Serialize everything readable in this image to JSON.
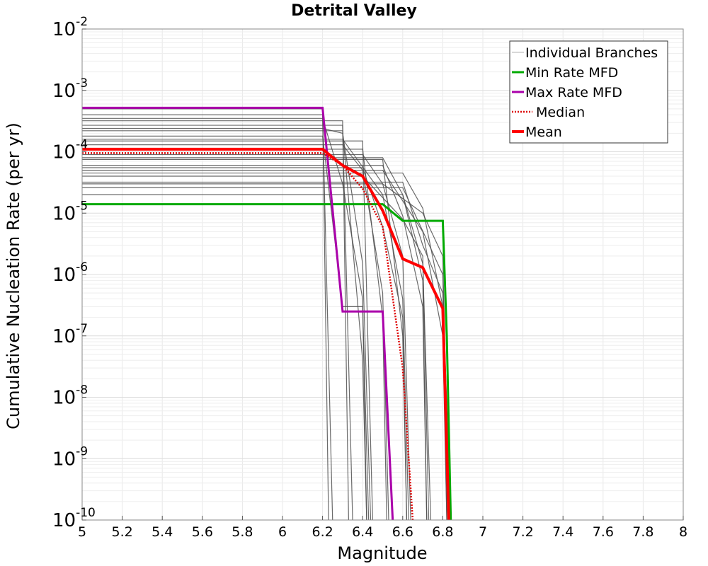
{
  "chart_data": {
    "type": "line",
    "title": "Detrital Valley",
    "xlabel": "Magnitude",
    "ylabel": "Cumulative Nucleation Rate (per yr)",
    "xlim": [
      5,
      8
    ],
    "ylim": [
      1e-10,
      0.01
    ],
    "y_scale": "log",
    "grid": true,
    "x_ticks": [
      "5",
      "5.2",
      "5.4",
      "5.6",
      "5.8",
      "6",
      "6.2",
      "6.4",
      "6.6",
      "6.8",
      "7",
      "7.2",
      "7.4",
      "7.6",
      "7.8",
      "8"
    ],
    "y_ticks": [
      {
        "value": 1e-10,
        "base": "10",
        "exp": "-10"
      },
      {
        "value": 1e-09,
        "base": "10",
        "exp": "-9"
      },
      {
        "value": 1e-08,
        "base": "10",
        "exp": "-8"
      },
      {
        "value": 1e-07,
        "base": "10",
        "exp": "-7"
      },
      {
        "value": 1e-06,
        "base": "10",
        "exp": "-6"
      },
      {
        "value": 1e-05,
        "base": "10",
        "exp": "-5"
      },
      {
        "value": 0.0001,
        "base": "10",
        "exp": "-4"
      },
      {
        "value": 0.001,
        "base": "10",
        "exp": "-3"
      },
      {
        "value": 0.01,
        "base": "10",
        "exp": "-2"
      }
    ],
    "legend_position": "top-right",
    "branch_color": "#505050",
    "branches": [
      [
        [
          5,
          0.0005
        ],
        [
          6.2,
          0.0005
        ],
        [
          6.23,
          1e-10
        ]
      ],
      [
        [
          5,
          0.0004
        ],
        [
          6.2,
          0.0004
        ],
        [
          6.25,
          1e-10
        ]
      ],
      [
        [
          5,
          0.00032
        ],
        [
          6.3,
          0.00032
        ],
        [
          6.33,
          1e-10
        ]
      ],
      [
        [
          5,
          0.00027
        ],
        [
          6.3,
          0.00027
        ],
        [
          6.35,
          1e-10
        ]
      ],
      [
        [
          5,
          0.00022
        ],
        [
          6.3,
          0.00022
        ],
        [
          6.4,
          4e-08
        ],
        [
          6.42,
          1e-10
        ]
      ],
      [
        [
          5,
          0.00018
        ],
        [
          6.2,
          0.00018
        ],
        [
          6.3,
          3e-07
        ],
        [
          6.4,
          3e-07
        ],
        [
          6.43,
          1e-10
        ]
      ],
      [
        [
          5,
          0.00015
        ],
        [
          6.4,
          0.00015
        ],
        [
          6.45,
          1e-10
        ]
      ],
      [
        [
          5,
          0.00013
        ],
        [
          6.3,
          0.00013
        ],
        [
          6.4,
          5e-05
        ],
        [
          6.5,
          5e-07
        ],
        [
          6.53,
          1e-10
        ]
      ],
      [
        [
          5,
          0.00011
        ],
        [
          6.4,
          0.00011
        ],
        [
          6.5,
          2e-07
        ],
        [
          6.52,
          1e-10
        ]
      ],
      [
        [
          5,
          9e-05
        ],
        [
          6.4,
          9e-05
        ],
        [
          6.5,
          3e-05
        ],
        [
          6.6,
          2e-06
        ],
        [
          6.64,
          1e-10
        ]
      ],
      [
        [
          5,
          7.5e-05
        ],
        [
          6.5,
          7.5e-05
        ],
        [
          6.6,
          1e-07
        ],
        [
          6.62,
          1e-10
        ]
      ],
      [
        [
          5,
          6e-05
        ],
        [
          6.5,
          6e-05
        ],
        [
          6.6,
          9e-06
        ],
        [
          6.7,
          3e-07
        ],
        [
          6.72,
          1e-10
        ]
      ],
      [
        [
          5,
          5e-05
        ],
        [
          6.5,
          5e-05
        ],
        [
          6.7,
          5e-06
        ],
        [
          6.8,
          1e-07
        ],
        [
          6.82,
          1e-10
        ]
      ],
      [
        [
          5,
          4e-05
        ],
        [
          6.4,
          4e-05
        ],
        [
          6.6,
          8e-06
        ],
        [
          6.7,
          2e-06
        ],
        [
          6.73,
          1e-10
        ]
      ],
      [
        [
          5,
          3.2e-05
        ],
        [
          6.6,
          3.2e-05
        ],
        [
          6.7,
          3e-06
        ],
        [
          6.8,
          5e-07
        ],
        [
          6.84,
          1e-10
        ]
      ],
      [
        [
          5,
          2.6e-05
        ],
        [
          6.6,
          2.6e-05
        ],
        [
          6.8,
          1e-06
        ],
        [
          6.83,
          1e-10
        ]
      ],
      [
        [
          5,
          2e-05
        ],
        [
          6.6,
          2e-05
        ],
        [
          6.7,
          8e-07
        ],
        [
          6.72,
          1e-10
        ]
      ],
      [
        [
          5,
          0.00035
        ],
        [
          6.2,
          0.00035
        ],
        [
          6.3,
          3e-05
        ],
        [
          6.4,
          4e-07
        ],
        [
          6.42,
          1e-10
        ]
      ],
      [
        [
          5,
          0.00024
        ],
        [
          6.2,
          0.00024
        ],
        [
          6.3,
          0.0002
        ],
        [
          6.4,
          1.5e-06
        ],
        [
          6.44,
          1e-10
        ]
      ],
      [
        [
          5,
          0.00016
        ],
        [
          6.3,
          0.00016
        ],
        [
          6.5,
          2e-05
        ],
        [
          6.6,
          4e-07
        ],
        [
          6.63,
          1e-10
        ]
      ],
      [
        [
          5,
          8e-05
        ],
        [
          6.5,
          8e-05
        ],
        [
          6.6,
          2e-05
        ],
        [
          6.7,
          1.5e-06
        ],
        [
          6.74,
          1e-10
        ]
      ],
      [
        [
          5,
          5.5e-05
        ],
        [
          6.4,
          5.5e-05
        ],
        [
          6.5,
          6e-06
        ],
        [
          6.6,
          2e-07
        ],
        [
          6.62,
          1e-10
        ]
      ],
      [
        [
          5,
          3e-05
        ],
        [
          6.5,
          3e-05
        ],
        [
          6.7,
          1e-05
        ],
        [
          6.8,
          2e-06
        ],
        [
          6.83,
          1e-10
        ]
      ],
      [
        [
          5,
          4.5e-05
        ],
        [
          6.6,
          4.5e-05
        ],
        [
          6.7,
          1.2e-05
        ],
        [
          6.8,
          3e-07
        ],
        [
          6.82,
          1e-10
        ]
      ]
    ],
    "series": [
      {
        "name": "Min Rate MFD",
        "color": "#00aa00",
        "style": "solid",
        "points": [
          [
            5,
            1.4e-05
          ],
          [
            6.5,
            1.4e-05
          ],
          [
            6.6,
            7.5e-06
          ],
          [
            6.8,
            7.5e-06
          ],
          [
            6.82,
            1e-07
          ],
          [
            6.84,
            1e-10
          ]
        ]
      },
      {
        "name": "Max Rate MFD",
        "color": "#aa00aa",
        "style": "solid",
        "points": [
          [
            5,
            0.00052
          ],
          [
            6.2,
            0.00052
          ],
          [
            6.3,
            2.5e-07
          ],
          [
            6.5,
            2.5e-07
          ],
          [
            6.55,
            1e-10
          ]
        ]
      },
      {
        "name": "Median",
        "color": "#dd0000",
        "style": "dotted",
        "points": [
          [
            5,
            9.5e-05
          ],
          [
            6.2,
            9.5e-05
          ],
          [
            6.3,
            6e-05
          ],
          [
            6.4,
            2.5e-05
          ],
          [
            6.5,
            6e-06
          ],
          [
            6.6,
            3e-08
          ],
          [
            6.65,
            1e-10
          ]
        ]
      },
      {
        "name": "Mean",
        "color": "#ff0000",
        "style": "solid",
        "points": [
          [
            5,
            0.00011
          ],
          [
            6.2,
            0.00011
          ],
          [
            6.3,
            6e-05
          ],
          [
            6.4,
            4e-05
          ],
          [
            6.5,
            1.1e-05
          ],
          [
            6.6,
            1.8e-06
          ],
          [
            6.7,
            1.3e-06
          ],
          [
            6.8,
            2.8e-07
          ],
          [
            6.83,
            1e-10
          ]
        ]
      }
    ],
    "legend": [
      {
        "label": "Individual Branches",
        "color": "#b0b0b0",
        "style": "solid",
        "width": 1
      },
      {
        "label": "Min Rate MFD",
        "color": "#00aa00",
        "style": "solid",
        "width": 3
      },
      {
        "label": "Max Rate MFD",
        "color": "#aa00aa",
        "style": "solid",
        "width": 3
      },
      {
        "label": "Median",
        "color": "#dd0000",
        "style": "dotted",
        "width": 2.5
      },
      {
        "label": "Mean",
        "color": "#ff0000",
        "style": "solid",
        "width": 4
      }
    ]
  }
}
